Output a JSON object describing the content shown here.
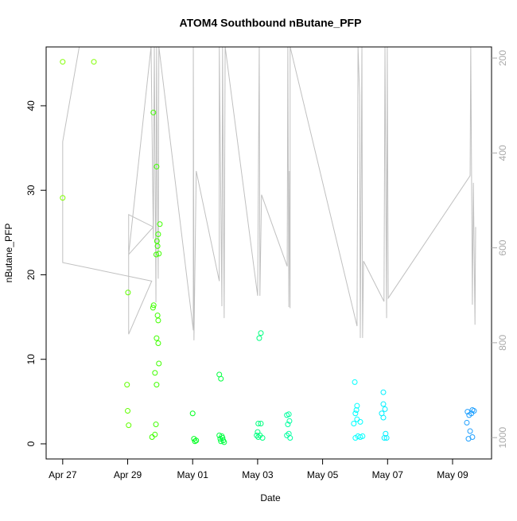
{
  "chart_data": {
    "type": "scatter",
    "title": "ATOM4 Southbound nButane_PFP",
    "x_label": "Date",
    "y_label": "nButane_PFP",
    "xlim": [
      116.49,
      130.2
    ],
    "ylim": [
      -1.79,
      46.96
    ],
    "y2lim": [
      1045,
      176.5
    ],
    "xticks": [
      {
        "value": 117,
        "label": "Apr 27"
      },
      {
        "value": 119,
        "label": "Apr 29"
      },
      {
        "value": 121,
        "label": "May 01"
      },
      {
        "value": 123,
        "label": "May 03"
      },
      {
        "value": 125,
        "label": "May 05"
      },
      {
        "value": 127,
        "label": "May 07"
      },
      {
        "value": 129,
        "label": "May 09"
      }
    ],
    "yticks": [
      0,
      10,
      20,
      30,
      40
    ],
    "y2ticks": [
      200,
      400,
      600,
      800,
      1000
    ],
    "x": [
      117.0,
      117.96,
      117.0,
      119.01,
      118.98,
      119.0,
      119.03,
      119.79,
      119.89,
      119.99,
      119.94,
      119.9,
      119.92,
      119.88,
      119.96,
      119.8,
      119.78,
      119.92,
      119.94,
      119.89,
      119.94,
      119.96,
      119.84,
      119.89,
      119.87,
      119.84,
      119.75,
      121.0,
      121.04,
      121.07,
      121.11,
      121.82,
      121.87,
      121.82,
      121.85,
      121.87,
      121.9,
      121.94,
      121.97,
      121.92,
      123.1,
      123.05,
      123.02,
      123.1,
      123.0,
      123.07,
      123.02,
      123.15,
      122.97,
      123.9,
      123.96,
      123.98,
      123.93,
      123.96,
      123.9,
      124.0,
      125.99,
      126.06,
      126.04,
      126.01,
      126.06,
      126.16,
      126.09,
      126.01,
      126.16,
      126.23,
      125.96,
      126.87,
      126.87,
      126.92,
      126.82,
      126.87,
      126.94,
      126.9,
      126.97,
      129.46,
      129.51,
      129.58,
      129.61,
      129.66,
      129.44,
      129.54,
      129.49,
      129.61
    ],
    "values": [
      45.2,
      45.2,
      29.1,
      17.9,
      7.0,
      3.9,
      2.2,
      39.2,
      32.8,
      26.0,
      24.8,
      24.0,
      23.4,
      22.4,
      22.5,
      16.4,
      16.1,
      15.2,
      14.6,
      12.5,
      11.9,
      9.5,
      8.4,
      7.0,
      2.3,
      1.1,
      0.8,
      3.6,
      0.6,
      0.3,
      0.4,
      8.2,
      7.7,
      1.0,
      0.6,
      0.3,
      0.9,
      0.4,
      0.2,
      0.7,
      13.1,
      12.5,
      2.4,
      2.4,
      1.4,
      1.0,
      0.8,
      0.7,
      1.0,
      3.4,
      3.5,
      2.7,
      2.3,
      1.2,
      1.0,
      0.7,
      7.3,
      4.5,
      4.0,
      3.6,
      2.9,
      2.6,
      0.9,
      0.7,
      0.8,
      0.9,
      2.4,
      6.1,
      4.7,
      4.1,
      3.6,
      3.1,
      1.2,
      0.7,
      0.7,
      3.8,
      3.4,
      3.6,
      4.0,
      3.9,
      2.5,
      1.5,
      0.6,
      0.8
    ],
    "colors": [
      "#80ff00",
      "#80ff00",
      "#80ff00",
      "#60ff00",
      "#60ff00",
      "#60ff00",
      "#60ff00",
      "#40ff00",
      "#40ff00",
      "#40ff00",
      "#40ff00",
      "#40ff00",
      "#40ff00",
      "#40ff00",
      "#40ff00",
      "#40ff00",
      "#40ff00",
      "#40ff00",
      "#40ff00",
      "#40ff00",
      "#40ff00",
      "#40ff00",
      "#40ff00",
      "#40ff00",
      "#40ff00",
      "#40ff00",
      "#40ff00",
      "#00ff20",
      "#00ff20",
      "#00ff20",
      "#00ff20",
      "#00ff40",
      "#00ff40",
      "#00ff40",
      "#00ff40",
      "#00ff40",
      "#00ff40",
      "#00ff40",
      "#00ff40",
      "#00ff40",
      "#00ff80",
      "#00ff80",
      "#00ff80",
      "#00ff80",
      "#00ff80",
      "#00ff80",
      "#00ff80",
      "#00ff80",
      "#00ff80",
      "#00ffa0",
      "#00ffa0",
      "#00ffa0",
      "#00ffa0",
      "#00ffa0",
      "#00ffa0",
      "#00ffa0",
      "#00ffff",
      "#00ffff",
      "#00ffff",
      "#00ffff",
      "#00ffff",
      "#00ffff",
      "#00ffff",
      "#00ffff",
      "#00ffff",
      "#00ffff",
      "#00ffff",
      "#00f0ff",
      "#00f0ff",
      "#00f0ff",
      "#00f0ff",
      "#00f0ff",
      "#00f0ff",
      "#00f0ff",
      "#00f0ff",
      "#20a0ff",
      "#20a0ff",
      "#20a0ff",
      "#20a0ff",
      "#20a0ff",
      "#20a0ff",
      "#20a0ff",
      "#20a0ff",
      "#20a0ff"
    ],
    "line": {
      "axis": "y2",
      "color": "#c0c0c0",
      "x": [
        117.51,
        117.0,
        117.0,
        119.74,
        119.03,
        119.03,
        119.79,
        119.03,
        119.72,
        119.79,
        119.82,
        119.87,
        119.89,
        119.94,
        119.96,
        121.02,
        121.02,
        121.04,
        121.11,
        121.82,
        121.82,
        121.9,
        121.92,
        121.97,
        122.0,
        123.0,
        123.05,
        123.07,
        123.12,
        123.91,
        123.93,
        123.96,
        123.98,
        124.0,
        124.0,
        126.06,
        126.09,
        126.14,
        126.16,
        126.21,
        126.23,
        126.26,
        126.89,
        126.92,
        126.97,
        126.99,
        127.02,
        129.54,
        129.56,
        129.61,
        129.64,
        129.69,
        129.71
      ],
      "values": [
        176,
        376,
        631,
        670,
        782,
        530,
        556,
        614,
        176,
        581,
        176,
        715,
        176,
        665,
        176,
        774,
        176,
        795,
        438,
        670,
        176,
        723,
        176,
        748,
        176,
        701,
        176,
        701,
        488,
        639,
        176,
        725,
        438,
        727,
        176,
        765,
        176,
        279,
        790,
        176,
        790,
        628,
        713,
        176,
        748,
        176,
        706,
        448,
        176,
        720,
        463,
        762,
        556
      ]
    }
  }
}
